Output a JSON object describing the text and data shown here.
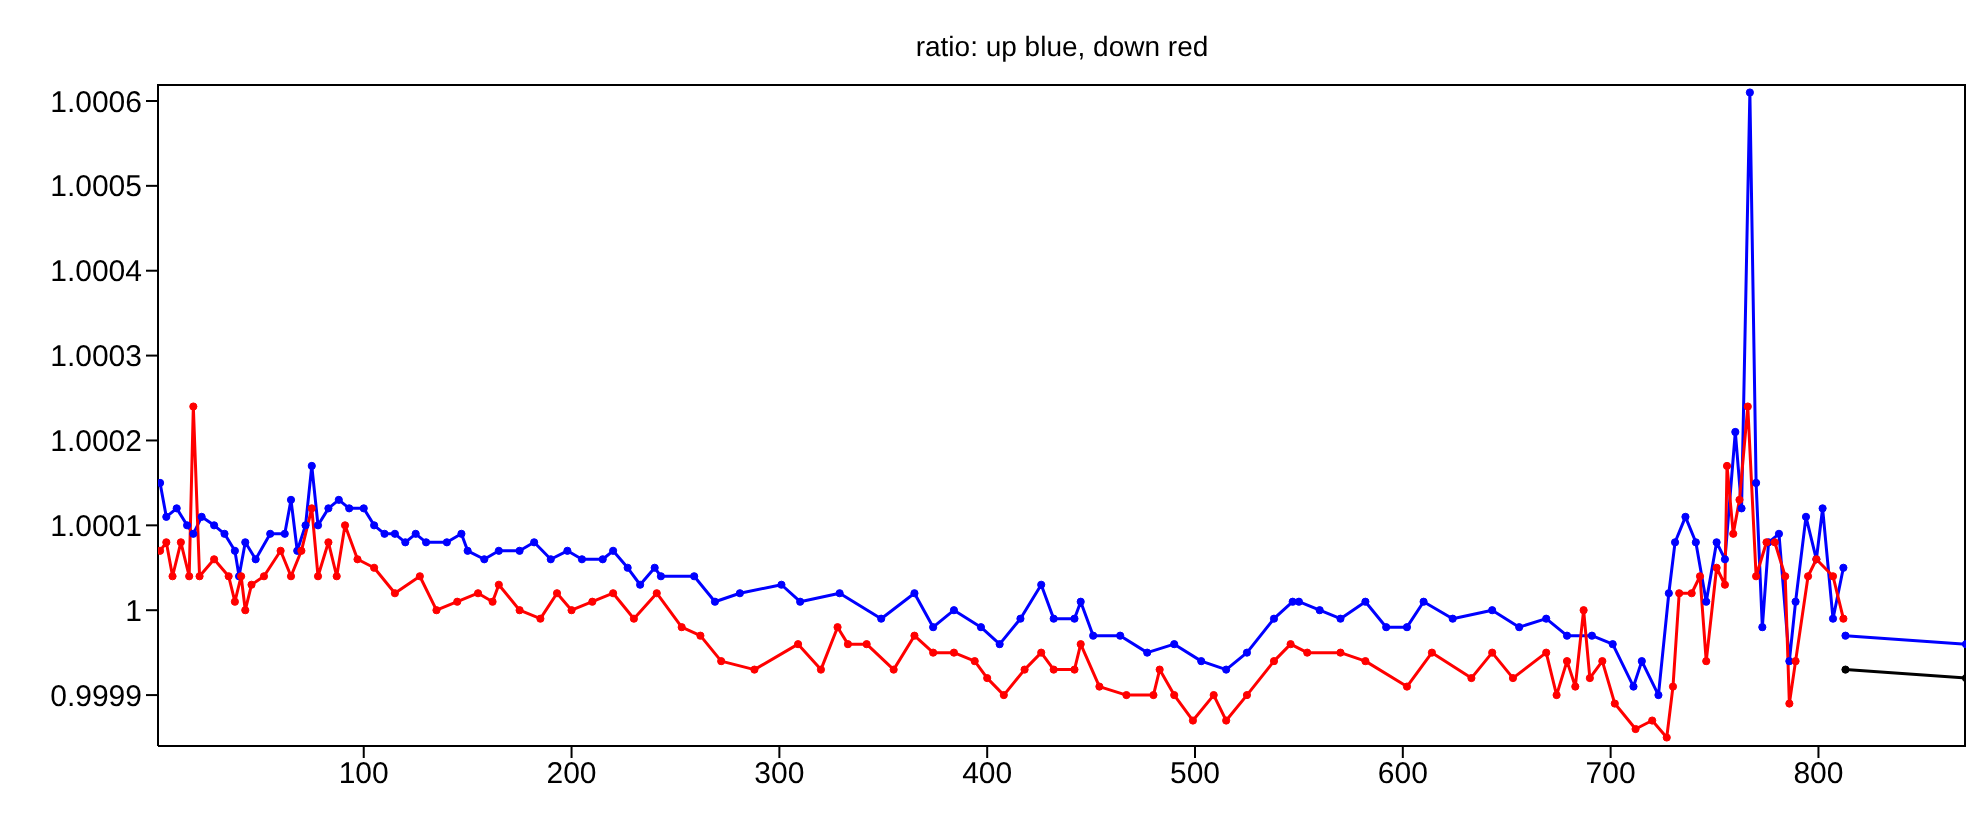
{
  "chart_data": {
    "type": "line",
    "title": "ratio: up blue, down red",
    "xlim": [
      1,
      871
    ],
    "xticks": [
      100,
      200,
      300,
      400,
      500,
      600,
      700,
      800
    ],
    "ylim": [
      0.99984,
      1.00062
    ],
    "yticks": [
      0.9999,
      1,
      1.0001,
      1.0002,
      1.0003,
      1.0004,
      1.0005,
      1.0006
    ],
    "marker": "circle",
    "line_style": "solid",
    "series": [
      {
        "color": "#0000ff",
        "x": [
          2,
          5,
          10,
          15,
          18,
          22,
          28,
          33,
          38,
          40,
          43,
          48,
          55,
          62,
          65,
          68,
          72,
          75,
          78,
          83,
          88,
          93,
          100,
          105,
          110,
          115,
          120,
          125,
          130,
          140,
          147,
          150,
          158,
          165,
          175,
          182,
          190,
          198,
          205,
          215,
          220,
          227,
          233,
          240,
          243,
          259,
          269,
          281,
          301,
          310,
          329,
          349,
          365,
          374,
          384,
          397,
          406,
          416,
          426,
          432,
          442,
          445,
          451,
          464,
          477,
          490,
          503,
          515,
          525,
          538,
          547,
          550,
          560,
          570,
          582,
          592,
          602,
          610,
          624,
          643,
          656,
          669,
          679,
          691,
          701,
          711,
          715,
          723,
          728,
          731,
          736,
          741,
          746,
          751,
          755,
          760,
          763,
          767,
          770,
          773,
          776,
          781,
          786,
          789,
          794,
          799,
          802,
          807,
          812
        ],
        "values": [
          1.00015,
          1.00011,
          1.00012,
          1.0001,
          1.00009,
          1.00011,
          1.0001,
          1.00009,
          1.00007,
          1.00004,
          1.00008,
          1.00006,
          1.00009,
          1.00009,
          1.00013,
          1.00007,
          1.0001,
          1.00017,
          1.0001,
          1.00012,
          1.00013,
          1.00012,
          1.00012,
          1.0001,
          1.00009,
          1.00009,
          1.00008,
          1.00009,
          1.00008,
          1.00008,
          1.00009,
          1.00007,
          1.00006,
          1.00007,
          1.00007,
          1.00008,
          1.00006,
          1.00007,
          1.00006,
          1.00006,
          1.00007,
          1.00005,
          1.00003,
          1.00005,
          1.00004,
          1.00004,
          1.00001,
          1.00002,
          1.00003,
          1.00001,
          1.00002,
          0.99999,
          1.00002,
          0.99998,
          1,
          0.99998,
          0.99996,
          0.99999,
          1.00003,
          0.99999,
          0.99999,
          1.00001,
          0.99997,
          0.99997,
          0.99995,
          0.99996,
          0.99994,
          0.99993,
          0.99995,
          0.99999,
          1.00001,
          1.00001,
          1,
          0.99999,
          1.00001,
          0.99998,
          0.99998,
          1.00001,
          0.99999,
          1,
          0.99998,
          0.99999,
          0.99997,
          0.99997,
          0.99996,
          0.99991,
          0.99994,
          0.9999,
          1.00002,
          1.00008,
          1.00011,
          1.00008,
          1.00001,
          1.00008,
          1.00006,
          1.00021,
          1.00012,
          1.00061,
          1.00015,
          0.99998,
          1.00008,
          1.00009,
          0.99994,
          1.00001,
          1.00011,
          1.00006,
          1.00012,
          0.99999,
          1.00005
        ]
      },
      {
        "color": "#ff0000",
        "x": [
          2,
          5,
          8,
          12,
          16,
          18,
          21,
          28,
          35,
          38,
          41,
          43,
          46,
          52,
          60,
          65,
          70,
          75,
          78,
          83,
          87,
          91,
          97,
          105,
          115,
          127,
          135,
          145,
          155,
          162,
          165,
          175,
          185,
          193,
          200,
          210,
          220,
          230,
          241,
          253,
          262,
          272,
          288,
          309,
          320,
          328,
          333,
          342,
          355,
          365,
          374,
          384,
          394,
          400,
          408,
          418,
          426,
          432,
          442,
          445,
          454,
          467,
          480,
          483,
          490,
          499,
          509,
          515,
          525,
          538,
          546,
          554,
          570,
          582,
          602,
          614,
          633,
          643,
          653,
          669,
          674,
          679,
          683,
          687,
          690,
          696,
          702,
          712,
          720,
          727,
          730,
          733,
          739,
          743,
          746,
          751,
          755,
          756,
          759,
          762,
          766,
          770,
          775,
          779,
          784,
          786,
          789,
          795,
          799,
          807,
          812
        ],
        "values": [
          1.00007,
          1.00008,
          1.00004,
          1.00008,
          1.00004,
          1.00024,
          1.00004,
          1.00006,
          1.00004,
          1.00001,
          1.00004,
          1,
          1.00003,
          1.00004,
          1.00007,
          1.00004,
          1.00007,
          1.00012,
          1.00004,
          1.00008,
          1.00004,
          1.0001,
          1.00006,
          1.00005,
          1.00002,
          1.00004,
          1,
          1.00001,
          1.00002,
          1.00001,
          1.00003,
          1,
          0.99999,
          1.00002,
          1,
          1.00001,
          1.00002,
          0.99999,
          1.00002,
          0.99998,
          0.99997,
          0.99994,
          0.99993,
          0.99996,
          0.99993,
          0.99998,
          0.99996,
          0.99996,
          0.99993,
          0.99997,
          0.99995,
          0.99995,
          0.99994,
          0.99992,
          0.9999,
          0.99993,
          0.99995,
          0.99993,
          0.99993,
          0.99996,
          0.99991,
          0.9999,
          0.9999,
          0.99993,
          0.9999,
          0.99987,
          0.9999,
          0.99987,
          0.9999,
          0.99994,
          0.99996,
          0.99995,
          0.99995,
          0.99994,
          0.99991,
          0.99995,
          0.99992,
          0.99995,
          0.99992,
          0.99995,
          0.9999,
          0.99994,
          0.99991,
          1,
          0.99992,
          0.99994,
          0.99989,
          0.99986,
          0.99987,
          0.99985,
          0.99991,
          1.00002,
          1.00002,
          1.00004,
          0.99994,
          1.00005,
          1.00003,
          1.00017,
          1.00009,
          1.00013,
          1.00024,
          1.00004,
          1.00008,
          1.00008,
          1.00004,
          0.99989,
          0.99994,
          1.00004,
          1.00006,
          1.00004,
          0.99999
        ]
      },
      {
        "color": "#0000ff",
        "x": [
          813,
          871
        ],
        "values": [
          0.99997,
          0.99996
        ]
      },
      {
        "color": "#000000",
        "x": [
          813,
          871
        ],
        "values": [
          0.99993,
          0.99992
        ]
      }
    ]
  }
}
